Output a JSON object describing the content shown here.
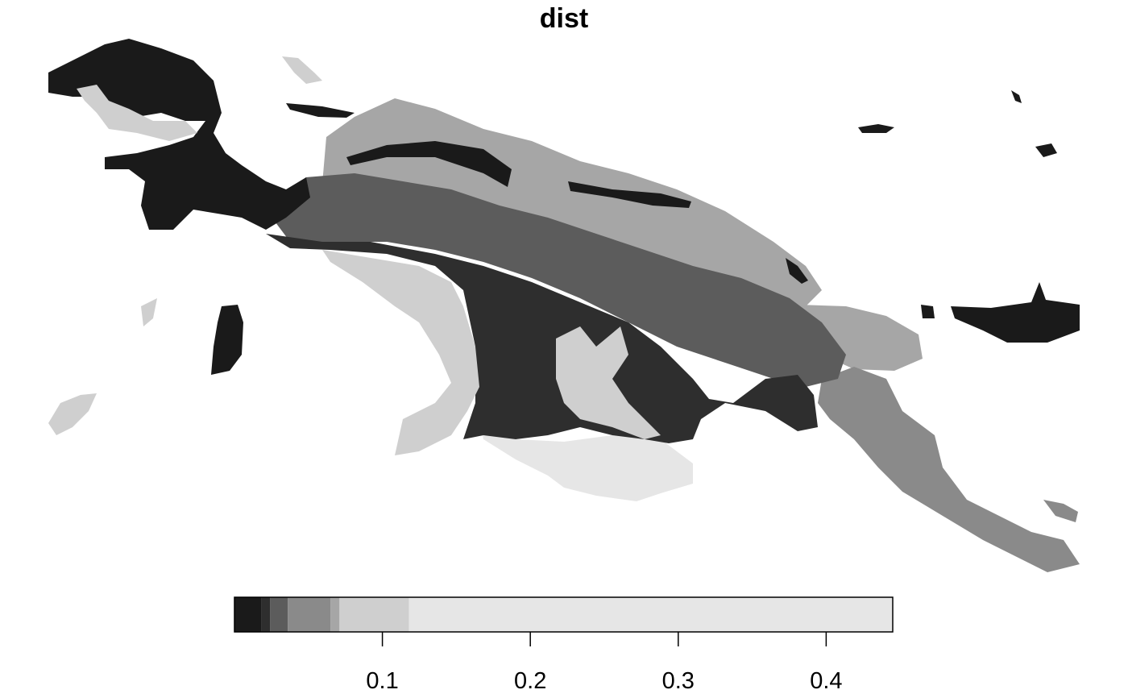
{
  "title": "dist",
  "palette": {
    "c1": "#1a1a1a",
    "c2": "#2e2e2e",
    "c3": "#5c5c5c",
    "c4": "#8a8a8a",
    "c5": "#a6a6a6",
    "c6": "#cfcfcf",
    "c7": "#e6e6e6"
  },
  "legend": {
    "type": "stepped-colorbar",
    "range": [
      0.0,
      0.445
    ],
    "bins": [
      {
        "from": 0.0,
        "to": 0.018,
        "color": "#1a1a1a"
      },
      {
        "from": 0.018,
        "to": 0.024,
        "color": "#2e2e2e"
      },
      {
        "from": 0.024,
        "to": 0.036,
        "color": "#5c5c5c"
      },
      {
        "from": 0.036,
        "to": 0.065,
        "color": "#8a8a8a"
      },
      {
        "from": 0.065,
        "to": 0.071,
        "color": "#a6a6a6"
      },
      {
        "from": 0.071,
        "to": 0.118,
        "color": "#cfcfcf"
      },
      {
        "from": 0.118,
        "to": 0.445,
        "color": "#e6e6e6"
      }
    ],
    "ticks": [
      {
        "value": 0.1,
        "label": "0.1"
      },
      {
        "value": 0.2,
        "label": "0.2"
      },
      {
        "value": 0.3,
        "label": "0.3"
      },
      {
        "value": 0.4,
        "label": "0.4"
      }
    ]
  }
}
